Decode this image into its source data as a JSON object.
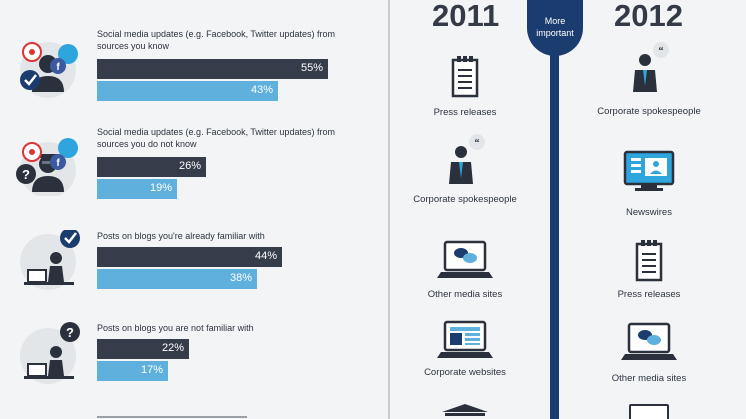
{
  "chart_data": {
    "type": "bar",
    "categories": [
      "Social media updates (e.g. Facebook, Twitter updates) from sources you know",
      "Social media updates (e.g. Facebook, Twitter updates) from sources you do not know",
      "Posts on blogs you're already familiar with",
      "Posts on blogs you are not familiar with"
    ],
    "series": [
      {
        "values": [
          55,
          26,
          44,
          22
        ],
        "value_labels": [
          "55%",
          "26%",
          "44%",
          "22%"
        ],
        "color": "#353c4a"
      },
      {
        "values": [
          43,
          19,
          38,
          17
        ],
        "value_labels": [
          "43%",
          "19%",
          "38%",
          "17%"
        ],
        "color": "#5fb0dc"
      }
    ],
    "xlim": [
      0,
      100
    ]
  },
  "timeline": {
    "year_left": "2011",
    "year_right": "2012",
    "badge": "More important",
    "col_2011": [
      {
        "label": "Press releases",
        "icon": "press-release-icon"
      },
      {
        "label": "Corporate spokespeople",
        "icon": "spokesperson-icon"
      },
      {
        "label": "Other media sites",
        "icon": "media-site-icon"
      },
      {
        "label": "Corporate websites",
        "icon": "corporate-website-icon"
      }
    ],
    "col_2012": [
      {
        "label": "Corporate spokespeople",
        "icon": "spokesperson-icon"
      },
      {
        "label": "Newswires",
        "icon": "newswire-icon"
      },
      {
        "label": "Press releases",
        "icon": "press-release-icon"
      },
      {
        "label": "Other media sites",
        "icon": "media-site-icon"
      }
    ]
  },
  "colors": {
    "dark": "#353c4a",
    "light": "#5fb0dc",
    "accent": "#1b3c6e"
  }
}
